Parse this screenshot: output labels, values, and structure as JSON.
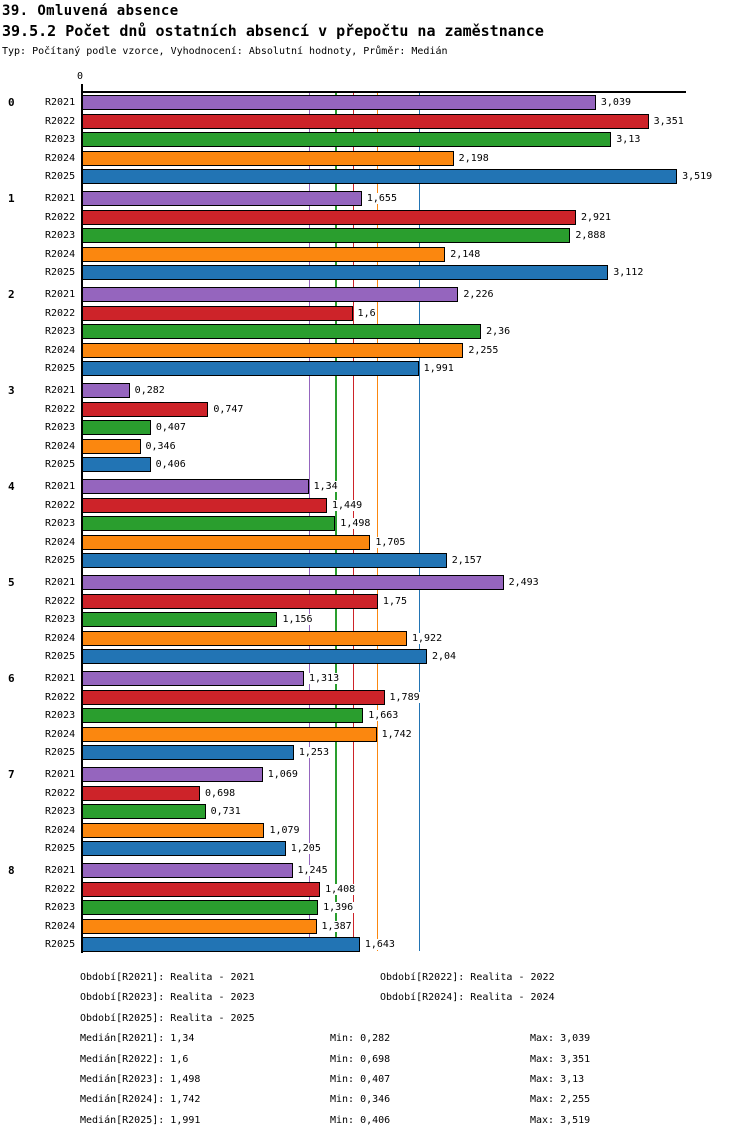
{
  "header": {
    "title": "39. Omluvená absence",
    "subtitle": "39.5.2 Počet dnů ostatních absencí v přepočtu na zaměstnance",
    "meta": "Typ: Počítaný podle vzorce, Vyhodnocení: Absolutní hodnoty, Průměr: Medián"
  },
  "chart_data": {
    "type": "bar",
    "orientation": "horizontal",
    "title": "39.5.2 Počet dnů ostatních absencí v přepočtu na zaměstnance",
    "xlabel": "",
    "ylabel": "",
    "xlim": [
      0,
      3.572
    ],
    "grid": false,
    "origin_tick_label": "0",
    "legend_position": "bottom",
    "categories": [
      "0",
      "1",
      "2",
      "3",
      "4",
      "5",
      "6",
      "7",
      "8"
    ],
    "series": [
      {
        "name": "R2021",
        "color": "#9565BE",
        "median": 1.34,
        "values": [
          3.039,
          1.655,
          2.226,
          0.282,
          1.34,
          2.493,
          1.313,
          1.069,
          1.245
        ],
        "value_labels": [
          "3,039",
          "1,655",
          "2,226",
          "0,282",
          "1,34",
          "2,493",
          "1,313",
          "1,069",
          "1,245"
        ]
      },
      {
        "name": "R2022",
        "color": "#CD2329",
        "median": 1.6,
        "values": [
          3.351,
          2.921,
          1.6,
          0.747,
          1.449,
          1.75,
          1.789,
          0.698,
          1.408
        ],
        "value_labels": [
          "3,351",
          "2,921",
          "1,6",
          "0,747",
          "1,449",
          "1,75",
          "1,789",
          "0,698",
          "1,408"
        ]
      },
      {
        "name": "R2023",
        "color": "#2A9E2E",
        "median": 1.498,
        "values": [
          3.13,
          2.888,
          2.36,
          0.407,
          1.498,
          1.156,
          1.663,
          0.731,
          1.396
        ],
        "value_labels": [
          "3,13",
          "2,888",
          "2,36",
          "0,407",
          "1,498",
          "1,156",
          "1,663",
          "0,731",
          "1,396"
        ]
      },
      {
        "name": "R2024",
        "color": "#FB870F",
        "median": 1.742,
        "values": [
          2.198,
          2.148,
          2.255,
          0.346,
          1.705,
          1.922,
          1.742,
          1.079,
          1.387
        ],
        "value_labels": [
          "2,198",
          "2,148",
          "2,255",
          "0,346",
          "1,705",
          "1,922",
          "1,742",
          "1,079",
          "1,387"
        ]
      },
      {
        "name": "R2025",
        "color": "#2274B4",
        "median": 1.991,
        "values": [
          3.519,
          3.112,
          1.991,
          0.406,
          2.157,
          2.04,
          1.253,
          1.205,
          1.643
        ],
        "value_labels": [
          "3,519",
          "3,112",
          "1,991",
          "0,406",
          "2,157",
          "2,04",
          "1,253",
          "1,205",
          "1,643"
        ]
      }
    ]
  },
  "legend": {
    "periods": [
      "Období[R2021]: Realita - 2021",
      "Období[R2022]: Realita - 2022",
      "Období[R2023]: Realita - 2023",
      "Období[R2024]: Realita - 2024",
      "Období[R2025]: Realita - 2025"
    ],
    "stats": [
      {
        "median": "Medián[R2021]: 1,34",
        "min": "Min: 0,282",
        "max": "Max: 3,039"
      },
      {
        "median": "Medián[R2022]: 1,6",
        "min": "Min: 0,698",
        "max": "Max: 3,351"
      },
      {
        "median": "Medián[R2023]: 1,498",
        "min": "Min: 0,407",
        "max": "Max: 3,13"
      },
      {
        "median": "Medián[R2024]: 1,742",
        "min": "Min: 0,346",
        "max": "Max: 2,255"
      },
      {
        "median": "Medián[R2025]: 1,991",
        "min": "Min: 0,406",
        "max": "Max: 3,519"
      }
    ]
  }
}
